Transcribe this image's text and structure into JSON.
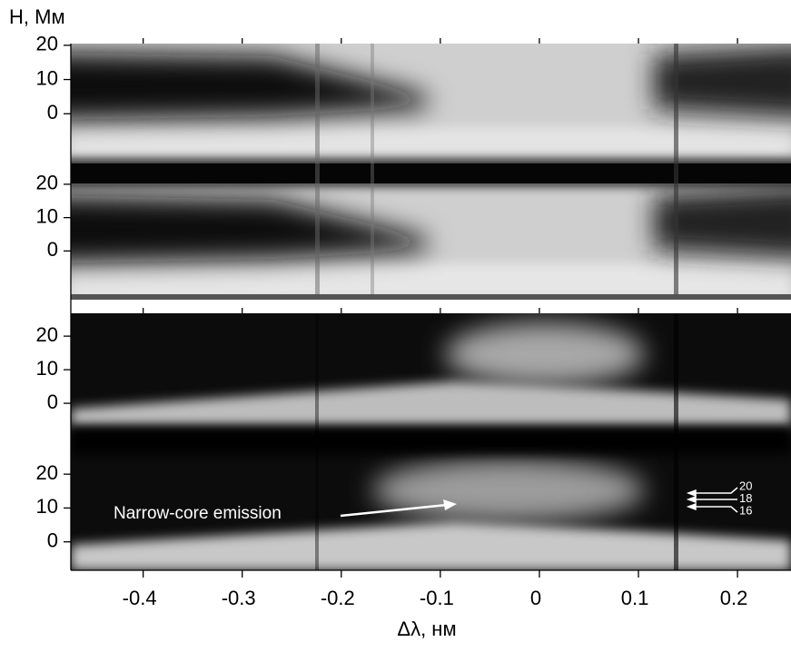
{
  "chart_data": {
    "type": "spectrogram",
    "ylabel": "H, Мм",
    "xlabel": "Δλ, нм",
    "xlim": [
      -0.473,
      0.254
    ],
    "xticks": [
      -0.4,
      -0.3,
      -0.2,
      -0.1,
      0,
      0.1,
      0.2
    ],
    "panels": [
      {
        "ylim": [
          -13.2,
          20.5
        ],
        "yticks": [
          20,
          10,
          0
        ]
      },
      {
        "ylim": [
          -14.6,
          27.6
        ],
        "yticks": [
          20,
          10,
          0
        ]
      },
      {
        "ylim": [
          -7.0,
          26.8
        ],
        "yticks": [
          20,
          10,
          0
        ]
      },
      {
        "ylim": [
          -8.4,
          34.0
        ],
        "yticks": [
          20,
          10,
          0
        ]
      }
    ],
    "annotation": "Narrow-core emission",
    "arrow_labels": [
      20,
      18,
      16
    ]
  }
}
